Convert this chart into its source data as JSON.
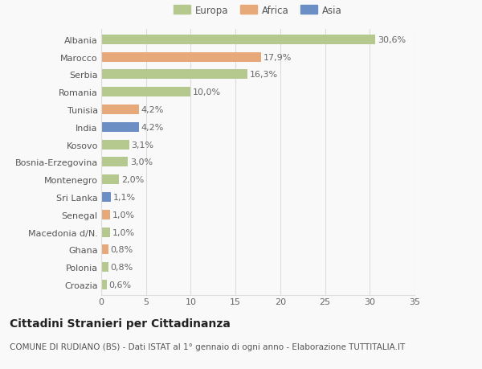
{
  "countries": [
    "Albania",
    "Marocco",
    "Serbia",
    "Romania",
    "Tunisia",
    "India",
    "Kosovo",
    "Bosnia-Erzegovina",
    "Montenegro",
    "Sri Lanka",
    "Senegal",
    "Macedonia d/N.",
    "Ghana",
    "Polonia",
    "Croazia"
  ],
  "values": [
    30.6,
    17.9,
    16.3,
    10.0,
    4.2,
    4.2,
    3.1,
    3.0,
    2.0,
    1.1,
    1.0,
    1.0,
    0.8,
    0.8,
    0.6
  ],
  "labels": [
    "30,6%",
    "17,9%",
    "16,3%",
    "10,0%",
    "4,2%",
    "4,2%",
    "3,1%",
    "3,0%",
    "2,0%",
    "1,1%",
    "1,0%",
    "1,0%",
    "0,8%",
    "0,8%",
    "0,6%"
  ],
  "continents": [
    "Europa",
    "Africa",
    "Europa",
    "Europa",
    "Africa",
    "Asia",
    "Europa",
    "Europa",
    "Europa",
    "Asia",
    "Africa",
    "Europa",
    "Africa",
    "Europa",
    "Europa"
  ],
  "colors": {
    "Europa": "#b5c98e",
    "Africa": "#e8a97a",
    "Asia": "#6b8fc4"
  },
  "xlim": [
    0,
    35
  ],
  "xticks": [
    0,
    5,
    10,
    15,
    20,
    25,
    30,
    35
  ],
  "title": "Cittadini Stranieri per Cittadinanza",
  "subtitle": "COMUNE DI RUDIANO (BS) - Dati ISTAT al 1° gennaio di ogni anno - Elaborazione TUTTITALIA.IT",
  "bg_color": "#f9f9f9",
  "grid_color": "#dddddd",
  "bar_height": 0.55,
  "label_fontsize": 8,
  "ytick_fontsize": 8,
  "xtick_fontsize": 8,
  "title_fontsize": 10,
  "subtitle_fontsize": 7.5,
  "legend_fontsize": 8.5
}
